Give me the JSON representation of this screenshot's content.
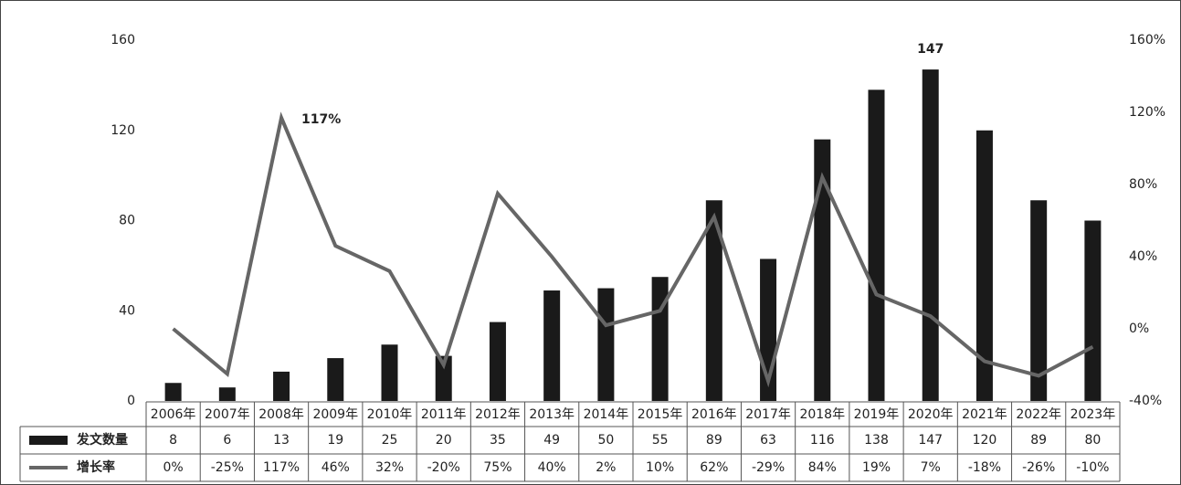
{
  "chart_data": {
    "type": "bar",
    "categories": [
      "2006年",
      "2007年",
      "2008年",
      "2009年",
      "2010年",
      "2011年",
      "2012年",
      "2013年",
      "2014年",
      "2015年",
      "2016年",
      "2017年",
      "2018年",
      "2019年",
      "2020年",
      "2021年",
      "2022年",
      "2023年"
    ],
    "series": [
      {
        "name": "发文数量",
        "type": "bar",
        "color": "#1a1a1a",
        "values": [
          8,
          6,
          13,
          19,
          25,
          20,
          35,
          49,
          50,
          55,
          89,
          63,
          116,
          138,
          147,
          120,
          89,
          80
        ]
      },
      {
        "name": "增长率",
        "type": "line",
        "axis": "y2",
        "color": "#666666",
        "values": [
          0,
          -25,
          117,
          46,
          32,
          -20,
          75,
          40,
          2,
          10,
          62,
          -29,
          84,
          19,
          7,
          -18,
          -26,
          -10
        ],
        "value_labels": [
          "0%",
          "-25%",
          "117%",
          "46%",
          "32%",
          "-20%",
          "75%",
          "40%",
          "2%",
          "10%",
          "62%",
          "-29%",
          "84%",
          "19%",
          "7%",
          "-18%",
          "-26%",
          "-10%"
        ]
      }
    ],
    "ylim": [
      0,
      160
    ],
    "yticks": [
      0,
      40,
      80,
      120,
      160
    ],
    "y2lim": [
      -40,
      160
    ],
    "y2ticks": [
      {
        "value": -40,
        "label": "-40%"
      },
      {
        "value": 0,
        "label": "0%"
      },
      {
        "value": 40,
        "label": "40%"
      },
      {
        "value": 80,
        "label": "80%"
      },
      {
        "value": 120,
        "label": "120%"
      },
      {
        "value": 160,
        "label": "160%"
      }
    ],
    "annotations": [
      {
        "text": "117%",
        "x": "2008年",
        "y": 117,
        "axis": "y2"
      },
      {
        "text": "147",
        "x": "2020年",
        "y": 147
      }
    ],
    "grid": false
  }
}
